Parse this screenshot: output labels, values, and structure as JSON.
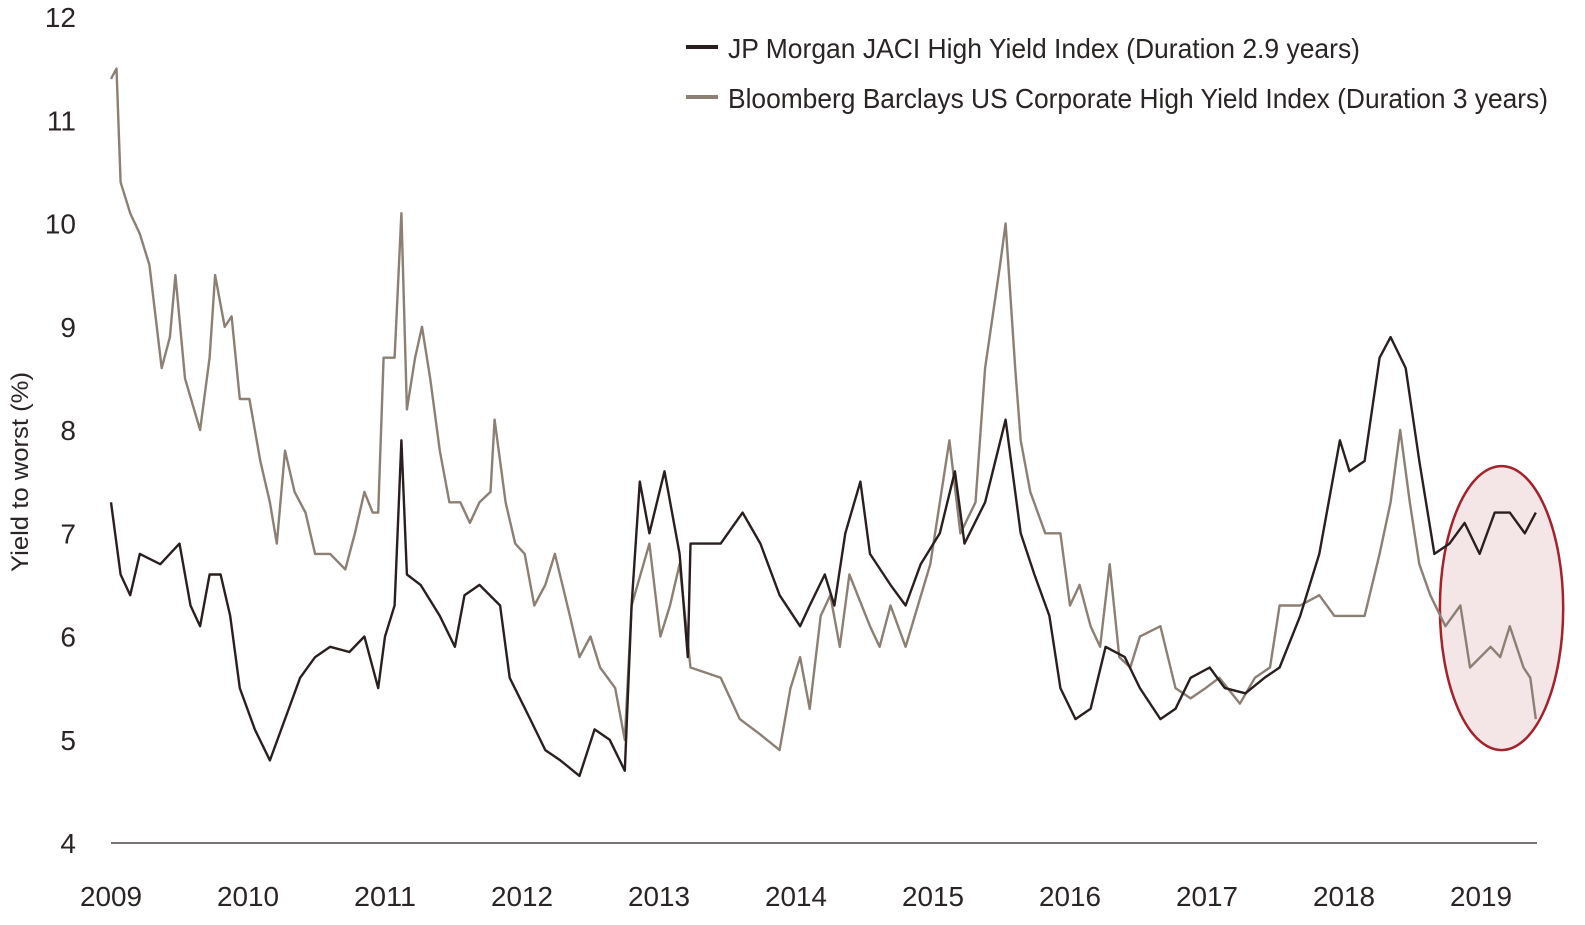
{
  "chart_data": {
    "type": "line",
    "title": "",
    "xlabel": "",
    "ylabel": "Yield to worst (%)",
    "xlim": [
      2009,
      2019.4
    ],
    "ylim": [
      4,
      12
    ],
    "x_ticks": [
      "2009",
      "2010",
      "2011",
      "2012",
      "2013",
      "2014",
      "2015",
      "2016",
      "2017",
      "2018",
      "2019"
    ],
    "y_ticks": [
      "4",
      "5",
      "6",
      "7",
      "8",
      "9",
      "10",
      "11",
      "12"
    ],
    "grid": false,
    "legend_position": "top-right",
    "colors": {
      "jpm": "#2a1f1f",
      "bbg": "#8c7f74",
      "highlight_stroke": "#a3222c",
      "highlight_fill": "#f4e5e7"
    },
    "highlight": {
      "shape": "ellipse",
      "x_range": [
        2018.7,
        2019.6
      ],
      "y_range": [
        4.9,
        7.65
      ]
    },
    "series": [
      {
        "name": "JP Morgan JACI High Yield Index (Duration 2.9 years)",
        "x": [
          2009.0,
          2009.07,
          2009.14,
          2009.21,
          2009.36,
          2009.5,
          2009.58,
          2009.65,
          2009.72,
          2009.8,
          2009.87,
          2009.94,
          2010.05,
          2010.16,
          2010.27,
          2010.38,
          2010.49,
          2010.6,
          2010.74,
          2010.85,
          2010.95,
          2011.0,
          2011.07,
          2011.12,
          2011.16,
          2011.26,
          2011.4,
          2011.51,
          2011.58,
          2011.69,
          2011.84,
          2011.91,
          2012.06,
          2012.17,
          2012.28,
          2012.42,
          2012.53,
          2012.64,
          2012.75,
          2012.8,
          2012.86,
          2012.93,
          2013.04,
          2013.15,
          2013.21,
          2013.23,
          2013.45,
          2013.61,
          2013.74,
          2013.88,
          2014.03,
          2014.1,
          2014.21,
          2014.28,
          2014.36,
          2014.47,
          2014.54,
          2014.69,
          2014.8,
          2014.91,
          2015.05,
          2015.16,
          2015.23,
          2015.38,
          2015.53,
          2015.64,
          2015.74,
          2015.85,
          2015.93,
          2016.04,
          2016.15,
          2016.26,
          2016.4,
          2016.51,
          2016.66,
          2016.77,
          2016.88,
          2017.02,
          2017.13,
          2017.28,
          2017.42,
          2017.53,
          2017.68,
          2017.82,
          2017.97,
          2018.04,
          2018.15,
          2018.26,
          2018.34,
          2018.45,
          2018.55,
          2018.66,
          2018.77,
          2018.88,
          2018.99,
          2019.1,
          2019.21,
          2019.32,
          2019.4
        ],
        "y": [
          7.3,
          6.6,
          6.4,
          6.8,
          6.7,
          6.9,
          6.3,
          6.1,
          6.6,
          6.6,
          6.2,
          5.5,
          5.1,
          4.8,
          5.2,
          5.6,
          5.8,
          5.9,
          5.85,
          6.0,
          5.5,
          6.0,
          6.3,
          7.9,
          6.6,
          6.5,
          6.2,
          5.9,
          6.4,
          6.5,
          6.3,
          5.6,
          5.2,
          4.9,
          4.8,
          4.65,
          5.1,
          5.0,
          4.7,
          6.3,
          7.5,
          7.0,
          7.6,
          6.8,
          5.8,
          6.9,
          6.9,
          7.2,
          6.9,
          6.4,
          6.1,
          6.3,
          6.6,
          6.3,
          7.0,
          7.5,
          6.8,
          6.5,
          6.3,
          6.7,
          7.0,
          7.6,
          6.9,
          7.3,
          8.1,
          7.0,
          6.6,
          6.2,
          5.5,
          5.2,
          5.3,
          5.9,
          5.8,
          5.5,
          5.2,
          5.3,
          5.6,
          5.7,
          5.5,
          5.45,
          5.6,
          5.7,
          6.2,
          6.8,
          7.9,
          7.6,
          7.7,
          8.7,
          8.9,
          8.6,
          7.7,
          6.8,
          6.9,
          7.1,
          6.8,
          7.2,
          7.2,
          7.0,
          7.2
        ]
      },
      {
        "name": "Bloomberg Barclays US Corporate High Yield Index (Duration 3 years)",
        "x": [
          2009.0,
          2009.04,
          2009.07,
          2009.14,
          2009.21,
          2009.28,
          2009.37,
          2009.43,
          2009.47,
          2009.54,
          2009.65,
          2009.72,
          2009.76,
          2009.83,
          2009.88,
          2009.94,
          2010.01,
          2010.09,
          2010.16,
          2010.21,
          2010.27,
          2010.34,
          2010.42,
          2010.49,
          2010.6,
          2010.71,
          2010.78,
          2010.85,
          2010.91,
          2010.95,
          2010.99,
          2011.07,
          2011.12,
          2011.16,
          2011.22,
          2011.27,
          2011.33,
          2011.4,
          2011.47,
          2011.55,
          2011.62,
          2011.69,
          2011.77,
          2011.8,
          2011.88,
          2011.95,
          2012.02,
          2012.09,
          2012.17,
          2012.24,
          2012.35,
          2012.42,
          2012.5,
          2012.57,
          2012.68,
          2012.75,
          2012.8,
          2012.93,
          2013.01,
          2013.08,
          2013.15,
          2013.23,
          2013.45,
          2013.59,
          2013.74,
          2013.88,
          2013.96,
          2014.03,
          2014.1,
          2014.18,
          2014.25,
          2014.32,
          2014.39,
          2014.54,
          2014.61,
          2014.69,
          2014.8,
          2014.98,
          2015.12,
          2015.2,
          2015.31,
          2015.38,
          2015.49,
          2015.53,
          2015.6,
          2015.64,
          2015.71,
          2015.82,
          2015.93,
          2016.0,
          2016.07,
          2016.15,
          2016.22,
          2016.29,
          2016.36,
          2016.44,
          2016.51,
          2016.66,
          2016.77,
          2016.88,
          2016.99,
          2017.09,
          2017.24,
          2017.35,
          2017.46,
          2017.53,
          2017.68,
          2017.82,
          2017.93,
          2018.04,
          2018.15,
          2018.26,
          2018.34,
          2018.41,
          2018.48,
          2018.55,
          2018.63,
          2018.74,
          2018.85,
          2018.92,
          2019.07,
          2019.14,
          2019.21,
          2019.31,
          2019.36,
          2019.4
        ],
        "y": [
          11.4,
          11.5,
          10.4,
          10.1,
          9.9,
          9.6,
          8.6,
          8.9,
          9.5,
          8.5,
          8.0,
          8.7,
          9.5,
          9.0,
          9.1,
          8.3,
          8.3,
          7.7,
          7.3,
          6.9,
          7.8,
          7.4,
          7.2,
          6.8,
          6.8,
          6.65,
          7.0,
          7.4,
          7.2,
          7.2,
          8.7,
          8.7,
          10.1,
          8.2,
          8.7,
          9.0,
          8.5,
          7.8,
          7.3,
          7.3,
          7.1,
          7.3,
          7.4,
          8.1,
          7.3,
          6.9,
          6.8,
          6.3,
          6.5,
          6.8,
          6.2,
          5.8,
          6.0,
          5.7,
          5.5,
          5.0,
          6.3,
          6.9,
          6.0,
          6.3,
          6.7,
          5.7,
          5.6,
          5.2,
          5.05,
          4.9,
          5.5,
          5.8,
          5.3,
          6.2,
          6.4,
          5.9,
          6.6,
          6.1,
          5.9,
          6.3,
          5.9,
          6.7,
          7.9,
          7.0,
          7.3,
          8.6,
          9.6,
          10.0,
          8.6,
          7.9,
          7.4,
          7.0,
          7.0,
          6.3,
          6.5,
          6.1,
          5.9,
          6.7,
          5.8,
          5.7,
          6.0,
          6.1,
          5.5,
          5.4,
          5.5,
          5.6,
          5.35,
          5.6,
          5.7,
          6.3,
          6.3,
          6.4,
          6.2,
          6.2,
          6.2,
          6.8,
          7.3,
          8.0,
          7.3,
          6.7,
          6.4,
          6.1,
          6.3,
          5.7,
          5.9,
          5.8,
          6.1,
          5.7,
          5.6,
          5.2
        ]
      }
    ]
  }
}
